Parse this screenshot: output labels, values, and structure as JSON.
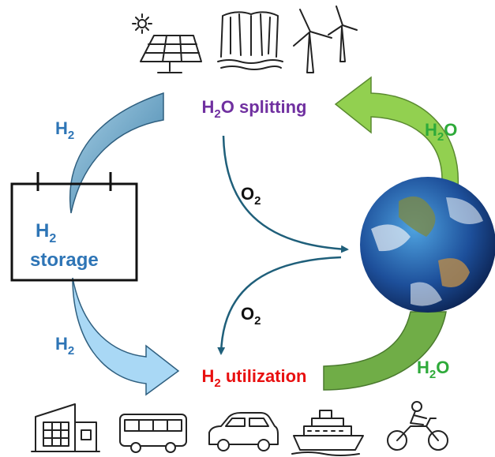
{
  "cycle": {
    "splitting": [
      "H",
      "2",
      "O splitting"
    ],
    "utilization": [
      "H",
      "2",
      " utilization"
    ],
    "storage": {
      "line1": [
        "H",
        "2"
      ],
      "line2": "storage"
    },
    "flows": {
      "h2_top": [
        "H",
        "2"
      ],
      "h2_bottom": [
        "H",
        "2"
      ],
      "o2_top": [
        "O",
        "2"
      ],
      "o2_bottom": [
        "O",
        "2"
      ],
      "h2o_top": [
        "H",
        "2",
        "O"
      ],
      "h2o_bottom": [
        "H",
        "2",
        "O"
      ]
    }
  }
}
